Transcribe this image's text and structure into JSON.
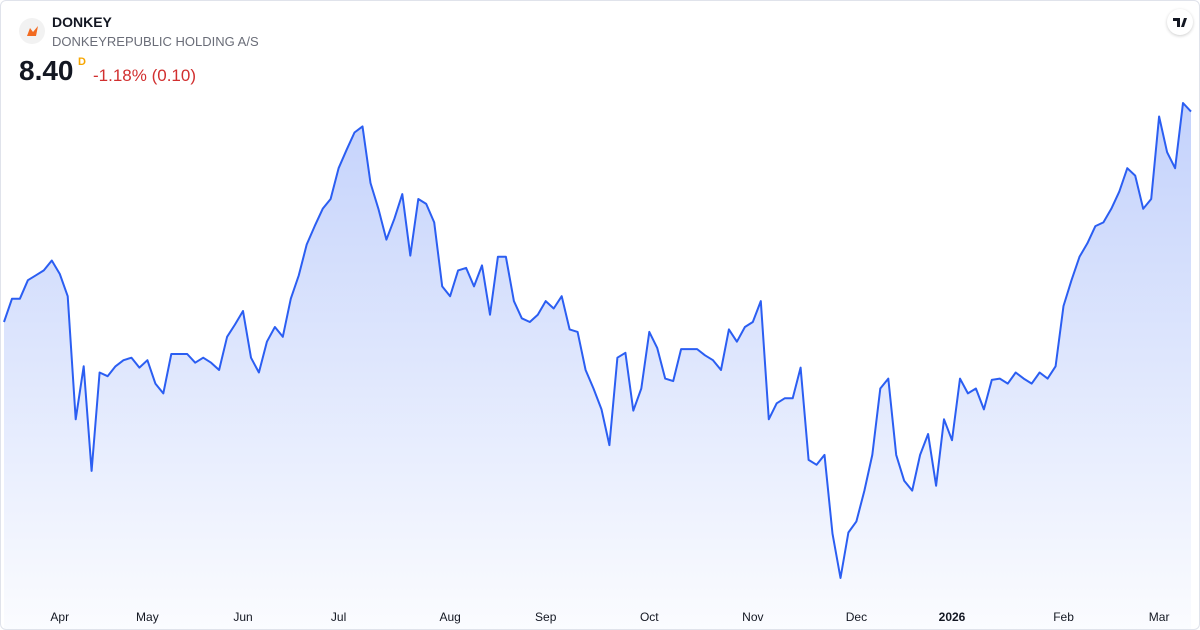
{
  "header": {
    "symbol": "DONKEY",
    "name": "DONKEYREPUBLIC HOLDING A/S",
    "price": "8.40",
    "flag": "D",
    "change": "-1.18% (0.10)"
  },
  "chart_data": {
    "type": "area",
    "color": "#2b5ef2",
    "categories": [
      null,
      null,
      null,
      null,
      null,
      null,
      null,
      "Apr",
      null,
      null,
      null,
      null,
      null,
      null,
      null,
      null,
      null,
      null,
      "May",
      null,
      null,
      null,
      null,
      null,
      null,
      null,
      null,
      null,
      null,
      null,
      "Jun",
      null,
      null,
      null,
      null,
      null,
      null,
      null,
      null,
      null,
      null,
      null,
      "Jul",
      null,
      null,
      null,
      null,
      null,
      null,
      null,
      null,
      null,
      null,
      null,
      null,
      null,
      "Aug",
      null,
      null,
      null,
      null,
      null,
      null,
      null,
      null,
      null,
      null,
      null,
      "Sep",
      null,
      null,
      null,
      null,
      null,
      null,
      null,
      null,
      null,
      null,
      null,
      null,
      "Oct",
      null,
      null,
      null,
      null,
      null,
      null,
      null,
      null,
      null,
      null,
      null,
      null,
      "Nov",
      null,
      null,
      null,
      null,
      null,
      null,
      null,
      null,
      null,
      null,
      null,
      null,
      "Dec",
      null,
      null,
      null,
      null,
      null,
      null,
      null,
      null,
      null,
      null,
      null,
      "2026",
      null,
      null,
      null,
      null,
      null,
      null,
      null,
      null,
      null,
      null,
      null,
      null,
      null,
      "Feb",
      null,
      null,
      null,
      null,
      null,
      null,
      null,
      null,
      null,
      null,
      null,
      "Mar",
      null,
      null,
      null,
      null
    ],
    "values": [
      6.69,
      6.88,
      6.88,
      7.03,
      7.07,
      7.11,
      7.19,
      7.08,
      6.9,
      5.9,
      6.33,
      5.48,
      6.28,
      6.25,
      6.33,
      6.38,
      6.4,
      6.32,
      6.38,
      6.19,
      6.11,
      6.43,
      6.43,
      6.43,
      6.36,
      6.4,
      6.36,
      6.3,
      6.57,
      6.67,
      6.78,
      6.4,
      6.28,
      6.53,
      6.65,
      6.57,
      6.88,
      7.07,
      7.32,
      7.47,
      7.61,
      7.69,
      7.94,
      8.09,
      8.23,
      8.28,
      7.82,
      7.61,
      7.36,
      7.53,
      7.73,
      7.23,
      7.69,
      7.65,
      7.5,
      6.98,
      6.9,
      7.11,
      7.13,
      6.98,
      7.15,
      6.75,
      7.22,
      7.22,
      6.86,
      6.72,
      6.69,
      6.75,
      6.86,
      6.8,
      6.9,
      6.63,
      6.61,
      6.3,
      6.15,
      5.98,
      5.69,
      6.4,
      6.44,
      5.97,
      6.15,
      6.61,
      6.48,
      6.23,
      6.21,
      6.47,
      6.47,
      6.47,
      6.42,
      6.38,
      6.3,
      6.63,
      6.53,
      6.65,
      6.69,
      6.86,
      5.9,
      6.03,
      6.07,
      6.07,
      6.32,
      5.57,
      5.53,
      5.61,
      4.97,
      4.61,
      4.98,
      5.07,
      5.32,
      5.61,
      6.15,
      6.23,
      5.61,
      5.4,
      5.32,
      5.61,
      5.78,
      5.36,
      5.9,
      5.73,
      6.23,
      6.11,
      6.15,
      5.98,
      6.22,
      6.23,
      6.19,
      6.28,
      6.23,
      6.19,
      6.28,
      6.23,
      6.33,
      6.82,
      7.03,
      7.22,
      7.33,
      7.47,
      7.5,
      7.61,
      7.75,
      7.94,
      7.88,
      7.61,
      7.69,
      8.36,
      8.07,
      7.94,
      8.47,
      8.4
    ]
  }
}
